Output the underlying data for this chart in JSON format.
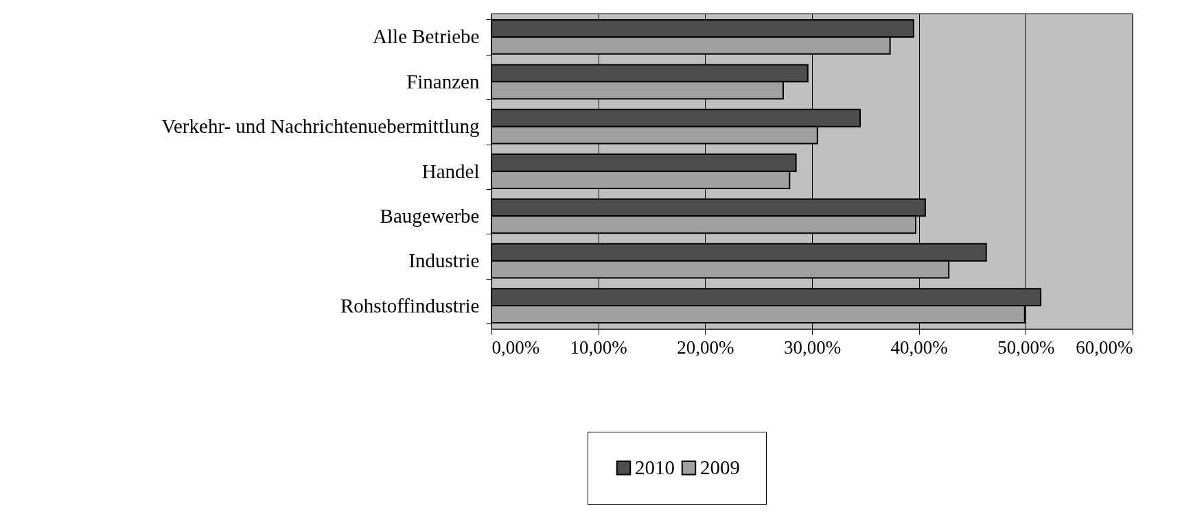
{
  "chart_data": {
    "type": "bar",
    "orientation": "horizontal",
    "categories": [
      "Alle Betriebe",
      "Finanzen",
      "Verkehr- und Nachrichtenuebermittlung",
      "Handel",
      "Baugewerbe",
      "Industrie",
      "Rohstoffindustrie"
    ],
    "series": [
      {
        "name": "2010",
        "color": "#4d4d4d",
        "values": [
          39.5,
          29.6,
          34.5,
          28.5,
          40.6,
          46.3,
          51.4
        ]
      },
      {
        "name": "2009",
        "color": "#a0a0a0",
        "values": [
          37.3,
          27.3,
          30.5,
          27.9,
          39.7,
          42.8,
          49.9
        ]
      }
    ],
    "xlim": [
      0,
      60
    ],
    "xticks": [
      {
        "value": 0,
        "label": "0,00%"
      },
      {
        "value": 10,
        "label": "10,00%"
      },
      {
        "value": 20,
        "label": "20,00%"
      },
      {
        "value": 30,
        "label": "30,00%"
      },
      {
        "value": 40,
        "label": "40,00%"
      },
      {
        "value": 50,
        "label": "50,00%"
      },
      {
        "value": 60,
        "label": "60,00%"
      }
    ],
    "grid": "x",
    "legend": "bottom"
  }
}
